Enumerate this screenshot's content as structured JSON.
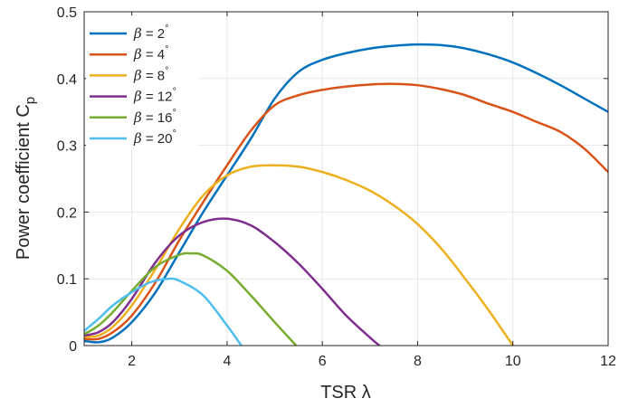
{
  "chart_data": {
    "type": "line",
    "title": "",
    "xlabel": "TSR λ",
    "ylabel": "Power coefficient C",
    "ylabel_subscript": "p",
    "xlim": [
      1,
      12
    ],
    "ylim": [
      0,
      0.5
    ],
    "xticks": [
      "2",
      "4",
      "6",
      "8",
      "10",
      "12"
    ],
    "yticks": [
      "0",
      "0.1",
      "0.2",
      "0.3",
      "0.4",
      "0.5"
    ],
    "grid": true,
    "legend_position": "top-left",
    "series": [
      {
        "name": "β = 2°",
        "label_symbol": "β",
        "label_rest": " = 2",
        "label_sup": "°",
        "color": "#0072BD",
        "x": [
          1.0,
          1.3,
          1.6,
          2.0,
          2.5,
          3.0,
          3.5,
          4.0,
          4.5,
          5.0,
          5.5,
          6.0,
          6.5,
          7.0,
          7.5,
          8.0,
          8.5,
          9.0,
          9.5,
          10.0,
          10.5,
          11.0,
          11.5,
          12.0
        ],
        "y": [
          0.007,
          0.005,
          0.012,
          0.035,
          0.08,
          0.14,
          0.2,
          0.255,
          0.31,
          0.37,
          0.41,
          0.428,
          0.438,
          0.445,
          0.449,
          0.451,
          0.45,
          0.445,
          0.436,
          0.424,
          0.408,
          0.39,
          0.37,
          0.35
        ]
      },
      {
        "name": "β = 4°",
        "label_symbol": "β",
        "label_rest": " = 4",
        "label_sup": "°",
        "color": "#D95319",
        "x": [
          1.0,
          1.3,
          1.6,
          2.0,
          2.5,
          3.0,
          3.5,
          4.0,
          4.5,
          5.0,
          5.5,
          6.0,
          6.5,
          7.0,
          7.5,
          8.0,
          8.5,
          9.0,
          9.5,
          10.0,
          10.5,
          11.0,
          11.5,
          12.0
        ],
        "y": [
          0.01,
          0.01,
          0.02,
          0.045,
          0.095,
          0.158,
          0.215,
          0.27,
          0.322,
          0.36,
          0.375,
          0.383,
          0.388,
          0.391,
          0.392,
          0.39,
          0.384,
          0.375,
          0.362,
          0.35,
          0.335,
          0.32,
          0.295,
          0.26
        ]
      },
      {
        "name": "β = 8°",
        "label_symbol": "β",
        "label_rest": " = 8",
        "label_sup": "°",
        "color": "#EDB120",
        "x": [
          1.0,
          1.3,
          1.6,
          2.0,
          2.5,
          3.0,
          3.5,
          4.0,
          4.5,
          5.0,
          5.5,
          6.0,
          6.5,
          7.0,
          7.5,
          8.0,
          8.5,
          9.0,
          9.5,
          10.0
        ],
        "y": [
          0.013,
          0.015,
          0.028,
          0.06,
          0.115,
          0.175,
          0.225,
          0.255,
          0.268,
          0.27,
          0.268,
          0.26,
          0.248,
          0.232,
          0.21,
          0.182,
          0.145,
          0.1,
          0.052,
          0.0
        ]
      },
      {
        "name": "β = 12°",
        "label_symbol": "β",
        "label_rest": " = 12",
        "label_sup": "°",
        "color": "#7E2F8E",
        "x": [
          1.0,
          1.3,
          1.6,
          2.0,
          2.5,
          3.0,
          3.5,
          4.0,
          4.5,
          5.0,
          5.5,
          6.0,
          6.5,
          7.0,
          7.2
        ],
        "y": [
          0.015,
          0.02,
          0.035,
          0.07,
          0.125,
          0.165,
          0.185,
          0.19,
          0.18,
          0.155,
          0.123,
          0.085,
          0.045,
          0.012,
          0.0
        ]
      },
      {
        "name": "β = 16°",
        "label_symbol": "β",
        "label_rest": " = 16",
        "label_sup": "°",
        "color": "#77AC30",
        "x": [
          1.0,
          1.3,
          1.6,
          2.0,
          2.5,
          3.0,
          3.25,
          3.5,
          4.0,
          4.5,
          5.0,
          5.45
        ],
        "y": [
          0.017,
          0.03,
          0.05,
          0.082,
          0.118,
          0.136,
          0.138,
          0.135,
          0.112,
          0.075,
          0.035,
          0.0
        ]
      },
      {
        "name": "β = 20°",
        "label_symbol": "β",
        "label_rest": " = 20",
        "label_sup": "°",
        "color": "#4DBEEE",
        "x": [
          1.0,
          1.3,
          1.6,
          2.0,
          2.4,
          2.75,
          3.0,
          3.5,
          4.0,
          4.3
        ],
        "y": [
          0.022,
          0.04,
          0.06,
          0.08,
          0.095,
          0.1,
          0.097,
          0.075,
          0.03,
          0.0
        ]
      }
    ]
  }
}
